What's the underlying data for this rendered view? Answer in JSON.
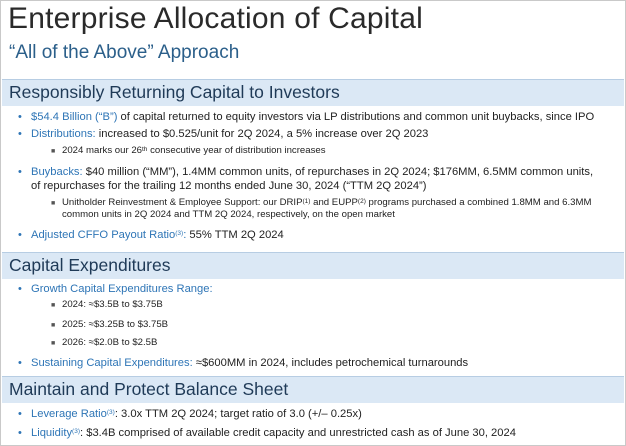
{
  "title": "Enterprise Allocation of Capital",
  "subtitle": "“All of the Above” Approach",
  "section1": {
    "heading": "Responsibly Returning Capital to Investors",
    "b1_label": "$54.4 Billion (“B”)",
    "b1_text": " of capital returned to equity investors via LP distributions and common unit buybacks, since IPO",
    "b2_label": "Distributions:",
    "b2_text": " increased to $0.525/unit for 2Q 2024, a 5% increase over 2Q 2023",
    "b2_sub_a": "2024 marks our 26",
    "b2_sub_sup": "th",
    "b2_sub_b": " consecutive year of distribution increases",
    "b3_label": "Buybacks:",
    "b3_line1": " $40 million (“MM”), 1.4MM common units, of repurchases in 2Q 2024; $176MM, 6.5MM common units,",
    "b3_line2": "of repurchases for the trailing 12 months ended June 30, 2024 (“TTM 2Q 2024”)",
    "b3_sub_a": "Unitholder Reinvestment & Employee Support:  our DRIP",
    "b3_sub_sup1": "(1)",
    "b3_sub_b": " and EUPP",
    "b3_sub_sup2": "(2)",
    "b3_sub_c": " programs purchased a combined 1.8MM and 6.3MM",
    "b3_sub_line2": "common units in 2Q 2024 and TTM 2Q 2024, respectively, on the open market",
    "b4_label": "Adjusted CFFO Payout Ratio",
    "b4_sup": "(3)",
    "b4_colon": ":",
    "b4_text": "  55% TTM 2Q 2024"
  },
  "section2": {
    "heading": "Capital Expenditures",
    "b1_label": "Growth Capital Expenditures Range:",
    "r1": "2024:  ≈$3.5B to $3.75B",
    "r2": "2025:  ≈$3.25B to $3.75B",
    "r3": "2026:  ≈$2.0B to $2.5B",
    "b2_label": "Sustaining Capital Expenditures:",
    "b2_text": " ≈$600MM in 2024, includes petrochemical turnarounds"
  },
  "section3": {
    "heading": "Maintain and Protect Balance Sheet",
    "b1_label": "Leverage Ratio",
    "b1_sup": "(3)",
    "b1_text": ":  3.0x TTM 2Q 2024; target ratio of 3.0 (+/– 0.25x)",
    "b2_label": "Liquidity",
    "b2_sup": "(3)",
    "b2_text": ":  $3.4B comprised of available credit capacity and unrestricted cash as of June 30, 2024"
  }
}
